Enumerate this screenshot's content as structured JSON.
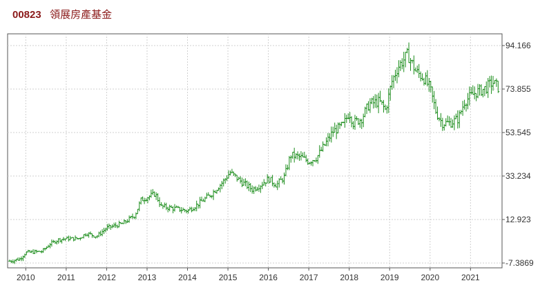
{
  "header": {
    "code": "00823",
    "name": "領展房產基金"
  },
  "chart_data": {
    "type": "ohlc",
    "color": "#1a8c1a",
    "grid": true,
    "ylim": [
      -7.3869,
      94.166
    ],
    "y_ticks": [
      {
        "value": 94.166,
        "label": "94.166"
      },
      {
        "value": 73.855,
        "label": "73.855"
      },
      {
        "value": 53.545,
        "label": "53.545"
      },
      {
        "value": 33.234,
        "label": "33.234"
      },
      {
        "value": 12.923,
        "label": "12.923"
      },
      {
        "value": -7.3869,
        "label": "-7.3869"
      }
    ],
    "xlim": [
      2009.55,
      2021.78
    ],
    "x_ticks": [
      {
        "value": 2010,
        "label": "2010"
      },
      {
        "value": 2011,
        "label": "2011"
      },
      {
        "value": 2012,
        "label": "2012"
      },
      {
        "value": 2013,
        "label": "2013"
      },
      {
        "value": 2014,
        "label": "2014"
      },
      {
        "value": 2015,
        "label": "2015"
      },
      {
        "value": 2016,
        "label": "2016"
      },
      {
        "value": 2017,
        "label": "2017"
      },
      {
        "value": 2018,
        "label": "2018"
      },
      {
        "value": 2019,
        "label": "2019"
      },
      {
        "value": 2020,
        "label": "2020"
      },
      {
        "value": 2021,
        "label": "2021"
      }
    ],
    "price_path": [
      [
        2009.6,
        -6.5
      ],
      [
        2009.85,
        -5.5
      ],
      [
        2010.0,
        -2.5
      ],
      [
        2010.4,
        -2.0
      ],
      [
        2010.6,
        1.5
      ],
      [
        2010.8,
        3.5
      ],
      [
        2011.0,
        4.0
      ],
      [
        2011.3,
        4.0
      ],
      [
        2011.5,
        6.5
      ],
      [
        2011.75,
        5.0
      ],
      [
        2012.0,
        9.0
      ],
      [
        2012.4,
        11.0
      ],
      [
        2012.7,
        15.0
      ],
      [
        2012.85,
        22.0
      ],
      [
        2013.2,
        25.0
      ],
      [
        2013.35,
        19.0
      ],
      [
        2013.7,
        18.0
      ],
      [
        2014.0,
        17.0
      ],
      [
        2014.25,
        20.0
      ],
      [
        2014.6,
        25.0
      ],
      [
        2014.9,
        31.0
      ],
      [
        2015.05,
        35.0
      ],
      [
        2015.3,
        31.0
      ],
      [
        2015.6,
        27.0
      ],
      [
        2015.8,
        29.0
      ],
      [
        2016.0,
        32.0
      ],
      [
        2016.2,
        29.0
      ],
      [
        2016.4,
        33.0
      ],
      [
        2016.55,
        43.0
      ],
      [
        2016.8,
        42.0
      ],
      [
        2017.0,
        40.0
      ],
      [
        2017.2,
        42.0
      ],
      [
        2017.4,
        48.0
      ],
      [
        2017.6,
        54.0
      ],
      [
        2017.85,
        57.0
      ],
      [
        2018.0,
        63.0
      ],
      [
        2018.1,
        58.0
      ],
      [
        2018.3,
        60.0
      ],
      [
        2018.5,
        67.0
      ],
      [
        2018.75,
        68.0
      ],
      [
        2018.9,
        64.0
      ],
      [
        2019.05,
        77.0
      ],
      [
        2019.2,
        84.0
      ],
      [
        2019.45,
        90.0
      ],
      [
        2019.65,
        82.0
      ],
      [
        2019.85,
        79.0
      ],
      [
        2020.0,
        74.0
      ],
      [
        2020.15,
        63.0
      ],
      [
        2020.3,
        58.0
      ],
      [
        2020.5,
        58.0
      ],
      [
        2020.7,
        60.0
      ],
      [
        2020.85,
        68.0
      ],
      [
        2021.1,
        72.0
      ],
      [
        2021.35,
        74.0
      ],
      [
        2021.55,
        77.0
      ],
      [
        2021.72,
        74.0
      ]
    ]
  }
}
